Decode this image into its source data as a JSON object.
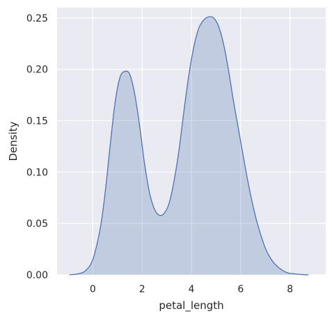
{
  "chart_data": {
    "type": "area",
    "title": "",
    "xlabel": "petal_length",
    "ylabel": "Density",
    "xlim": [
      -1.45,
      9.45
    ],
    "ylim": [
      0,
      0.26
    ],
    "xticks": [
      0,
      2,
      4,
      6,
      8
    ],
    "yticks": [
      0.0,
      0.05,
      0.1,
      0.15,
      0.2,
      0.25
    ],
    "ytick_labels": [
      "0.00",
      "0.05",
      "0.10",
      "0.15",
      "0.20",
      "0.25"
    ],
    "grid": true,
    "series": [
      {
        "x": [
          -0.95,
          -0.6,
          -0.3,
          0.0,
          0.3,
          0.5,
          0.7,
          0.9,
          1.1,
          1.3,
          1.5,
          1.7,
          1.9,
          2.1,
          2.3,
          2.5,
          2.7,
          2.9,
          3.1,
          3.3,
          3.5,
          3.7,
          3.9,
          4.1,
          4.3,
          4.5,
          4.7,
          4.9,
          5.1,
          5.3,
          5.5,
          5.7,
          5.9,
          6.1,
          6.3,
          6.5,
          6.7,
          7.0,
          7.3,
          7.6,
          7.9,
          8.2,
          8.5,
          8.75
        ],
        "y": [
          0.0,
          0.001,
          0.004,
          0.015,
          0.045,
          0.08,
          0.125,
          0.167,
          0.192,
          0.198,
          0.195,
          0.176,
          0.145,
          0.108,
          0.08,
          0.064,
          0.058,
          0.06,
          0.07,
          0.092,
          0.122,
          0.16,
          0.195,
          0.222,
          0.24,
          0.248,
          0.251,
          0.25,
          0.242,
          0.225,
          0.2,
          0.17,
          0.143,
          0.116,
          0.09,
          0.067,
          0.048,
          0.026,
          0.013,
          0.006,
          0.002,
          0.001,
          0.0003,
          0.0
        ]
      }
    ],
    "colors": {
      "background": "#eaeaf2",
      "grid": "#ffffff",
      "line": "#4c72b0",
      "fill": "#4c72b0"
    }
  }
}
